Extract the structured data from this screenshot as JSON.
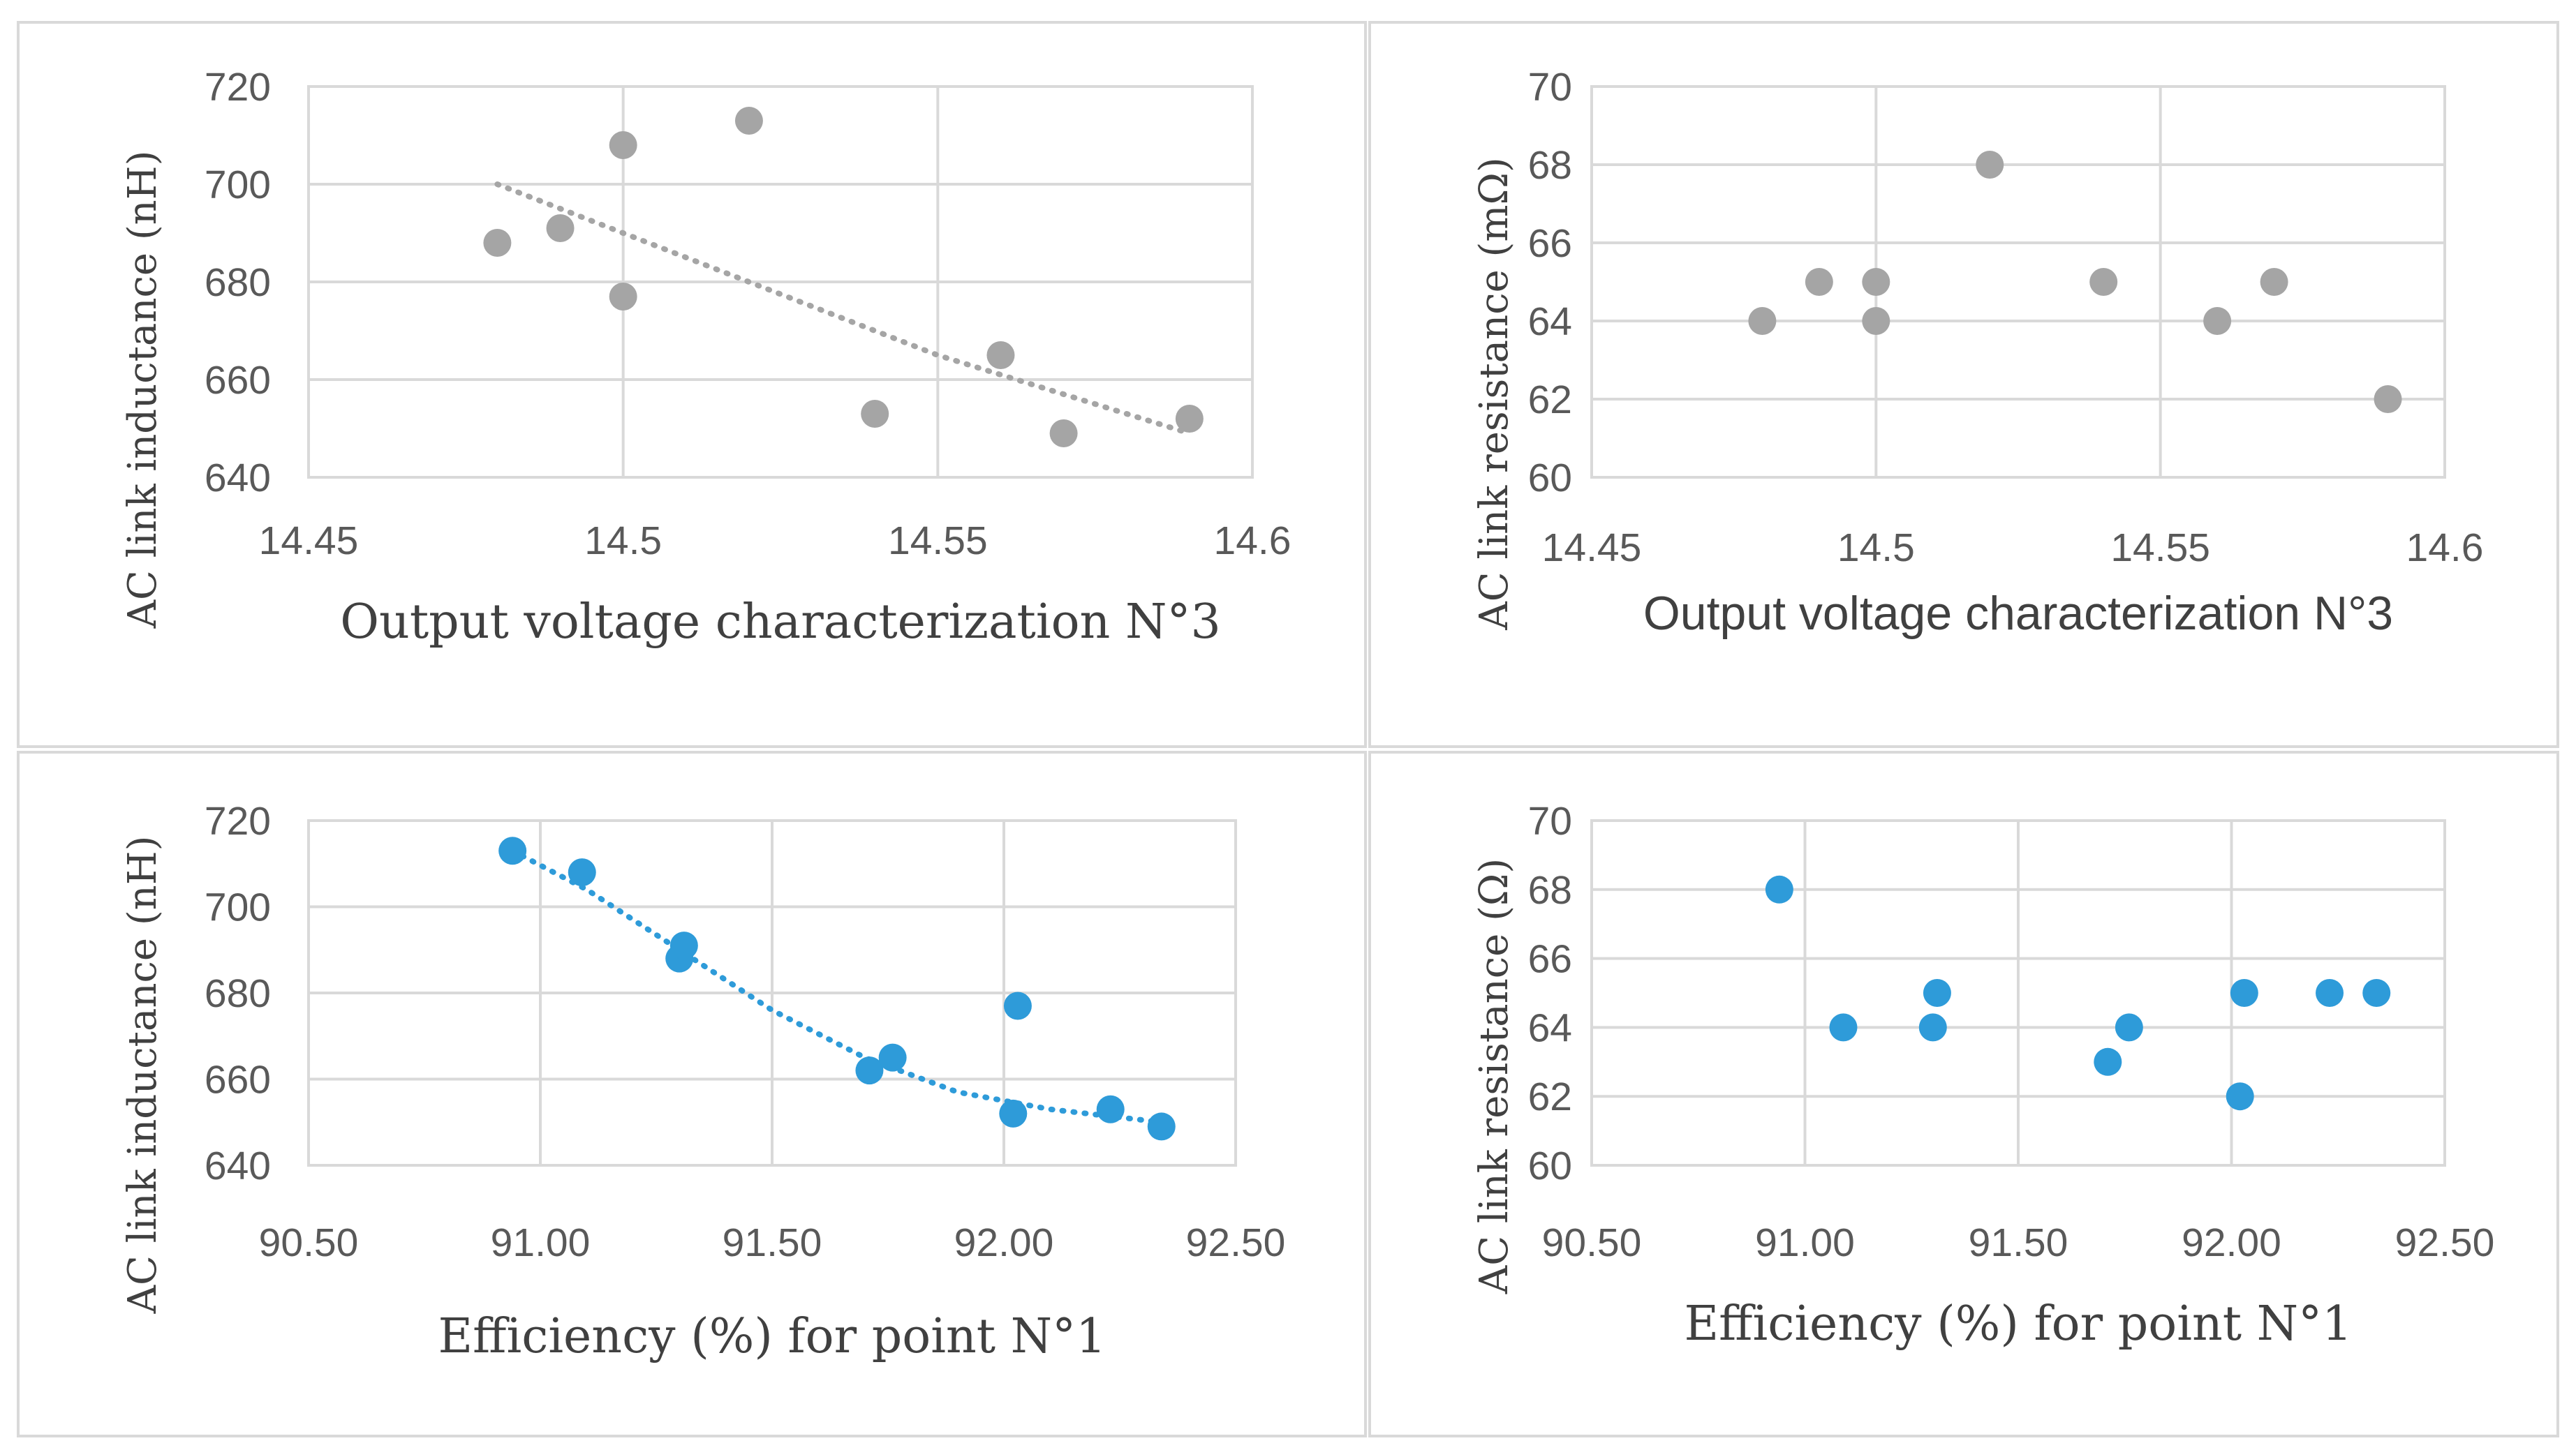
{
  "colors": {
    "gray_point": "#a5a5a5",
    "blue_point": "#2e9bd9",
    "gray_trend": "#a5a5a5",
    "blue_trend": "#2e9bd9"
  },
  "chart_data": [
    {
      "id": "tl",
      "type": "scatter",
      "title": "",
      "xlabel": "Output voltage characterization N°3",
      "ylabel": "AC link inductance (nH)",
      "xlim": [
        14.45,
        14.6
      ],
      "ylim": [
        640,
        720
      ],
      "xticks": [
        "14.45",
        "14.5",
        "14.55",
        "14.6"
      ],
      "yticks": [
        "640",
        "660",
        "680",
        "700",
        "720"
      ],
      "x_tick_values": [
        14.45,
        14.5,
        14.55,
        14.6
      ],
      "y_tick_values": [
        640,
        660,
        680,
        700,
        720
      ],
      "series": [
        {
          "name": "data",
          "color": "gray",
          "x": [
            14.48,
            14.49,
            14.5,
            14.5,
            14.52,
            14.54,
            14.56,
            14.57,
            14.59
          ],
          "y": [
            688,
            691,
            708,
            677,
            713,
            653,
            665,
            649,
            652
          ]
        }
      ],
      "trendline": {
        "type": "polynomial",
        "color": "gray",
        "x": [
          14.48,
          14.49,
          14.5,
          14.51,
          14.52,
          14.53,
          14.54,
          14.55,
          14.56,
          14.57,
          14.58,
          14.59
        ],
        "y": [
          700,
          695,
          690,
          685,
          680,
          675,
          670,
          665,
          661,
          657,
          653,
          649
        ]
      }
    },
    {
      "id": "tr",
      "type": "scatter",
      "title": "",
      "xlabel": "Output voltage characterization N°3",
      "ylabel": "AC link resistance (mΩ)",
      "xlim": [
        14.45,
        14.6
      ],
      "ylim": [
        60,
        70
      ],
      "xticks": [
        "14.45",
        "14.5",
        "14.55",
        "14.6"
      ],
      "yticks": [
        "60",
        "62",
        "64",
        "66",
        "68",
        "70"
      ],
      "x_tick_values": [
        14.45,
        14.5,
        14.55,
        14.6
      ],
      "y_tick_values": [
        60,
        62,
        64,
        66,
        68,
        70
      ],
      "series": [
        {
          "name": "data",
          "color": "gray",
          "x": [
            14.48,
            14.49,
            14.5,
            14.5,
            14.52,
            14.54,
            14.56,
            14.57,
            14.59
          ],
          "y": [
            64,
            65,
            65,
            64,
            68,
            65,
            64,
            65,
            62
          ]
        }
      ]
    },
    {
      "id": "bl",
      "type": "scatter",
      "title": "",
      "xlabel": "Efficiency (%) for point N°1",
      "ylabel": "AC link inductance (nH)",
      "xlim": [
        90.5,
        92.5
      ],
      "ylim": [
        640,
        720
      ],
      "xticks": [
        "90.50",
        "91.00",
        "91.50",
        "92.00",
        "92.50"
      ],
      "yticks": [
        "640",
        "660",
        "680",
        "700",
        "720"
      ],
      "x_tick_values": [
        90.5,
        91.0,
        91.5,
        92.0,
        92.5
      ],
      "y_tick_values": [
        640,
        660,
        680,
        700,
        720
      ],
      "series": [
        {
          "name": "data",
          "color": "blue",
          "x": [
            90.94,
            91.09,
            91.3,
            91.31,
            91.71,
            91.76,
            92.02,
            92.03,
            92.23,
            92.34
          ],
          "y": [
            713,
            708,
            688,
            691,
            662,
            665,
            652,
            677,
            653,
            649
          ]
        }
      ],
      "trendline": {
        "type": "polynomial",
        "color": "blue",
        "x": [
          90.94,
          91.1,
          91.3,
          91.5,
          91.7,
          91.9,
          92.1,
          92.34
        ],
        "y": [
          713,
          704,
          690,
          676,
          665,
          657,
          653,
          650
        ]
      }
    },
    {
      "id": "br",
      "type": "scatter",
      "title": "",
      "xlabel": "Efficiency (%) for point N°1",
      "ylabel": "AC link resistance (Ω)",
      "xlim": [
        90.5,
        92.5
      ],
      "ylim": [
        60,
        70
      ],
      "xticks": [
        "90.50",
        "91.00",
        "91.50",
        "92.00",
        "92.50"
      ],
      "yticks": [
        "60",
        "62",
        "64",
        "66",
        "68",
        "70"
      ],
      "x_tick_values": [
        90.5,
        91.0,
        91.5,
        92.0,
        92.5
      ],
      "y_tick_values": [
        60,
        62,
        64,
        66,
        68,
        70
      ],
      "series": [
        {
          "name": "data",
          "color": "blue",
          "x": [
            90.94,
            91.09,
            91.3,
            91.31,
            91.71,
            91.76,
            92.02,
            92.03,
            92.23,
            92.34
          ],
          "y": [
            68,
            64,
            64,
            65,
            63,
            64,
            62,
            65,
            65,
            65
          ]
        }
      ]
    }
  ]
}
